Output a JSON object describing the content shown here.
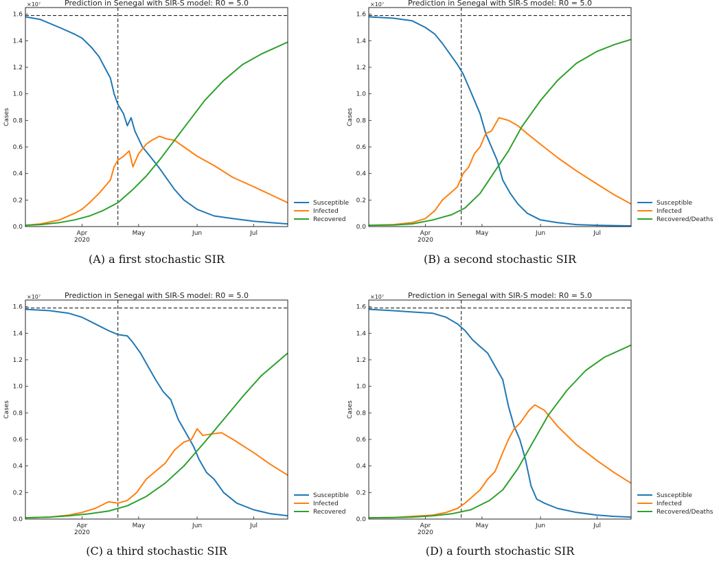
{
  "chart_data": [
    {
      "type": "line",
      "title": "Prediction in Senegal with SIR-S model: R0 = 5.0",
      "caption": "(A) a first stochastic SIR",
      "ylabel": "Cases",
      "y_multiplier": "×10⁷",
      "ylim": [
        0,
        1.65
      ],
      "y_ticks": [
        "0.0",
        "0.2",
        "0.4",
        "0.6",
        "0.8",
        "1.0",
        "1.2",
        "1.4",
        "1.6"
      ],
      "xlim": [
        "2020-03-02",
        "2020-07-19"
      ],
      "x_ticks": [
        {
          "date": "2020-04-01",
          "label": "Apr",
          "sublabel": "2020"
        },
        {
          "date": "2020-05-01",
          "label": "May",
          "sublabel": ""
        },
        {
          "date": "2020-06-01",
          "label": "Jun",
          "sublabel": ""
        },
        {
          "date": "2020-07-01",
          "label": "Jul",
          "sublabel": ""
        }
      ],
      "hline": 1.59,
      "vline": "2020-04-20",
      "legend_placement": "right-bottom",
      "series": [
        {
          "name": "Susceptible",
          "color": "#1f77b4",
          "x": [
            "2020-03-02",
            "2020-03-10",
            "2020-03-20",
            "2020-03-28",
            "2020-04-01",
            "2020-04-06",
            "2020-04-10",
            "2020-04-13",
            "2020-04-16",
            "2020-04-18",
            "2020-04-20",
            "2020-04-23",
            "2020-04-25",
            "2020-04-27",
            "2020-04-29",
            "2020-05-03",
            "2020-05-07",
            "2020-05-12",
            "2020-05-16",
            "2020-05-20",
            "2020-05-25",
            "2020-06-01",
            "2020-06-10",
            "2020-06-20",
            "2020-07-01",
            "2020-07-10",
            "2020-07-19"
          ],
          "y": [
            1.58,
            1.56,
            1.5,
            1.45,
            1.42,
            1.35,
            1.28,
            1.2,
            1.12,
            1.0,
            0.92,
            0.85,
            0.76,
            0.82,
            0.72,
            0.6,
            0.53,
            0.44,
            0.36,
            0.28,
            0.2,
            0.13,
            0.08,
            0.06,
            0.04,
            0.03,
            0.02
          ]
        },
        {
          "name": "Infected",
          "color": "#ff7f0e",
          "x": [
            "2020-03-02",
            "2020-03-10",
            "2020-03-20",
            "2020-03-28",
            "2020-04-01",
            "2020-04-05",
            "2020-04-10",
            "2020-04-13",
            "2020-04-16",
            "2020-04-18",
            "2020-04-20",
            "2020-04-23",
            "2020-04-26",
            "2020-04-28",
            "2020-05-01",
            "2020-05-05",
            "2020-05-08",
            "2020-05-12",
            "2020-05-16",
            "2020-05-20",
            "2020-05-25",
            "2020-06-01",
            "2020-06-10",
            "2020-06-20",
            "2020-07-01",
            "2020-07-10",
            "2020-07-19"
          ],
          "y": [
            0.01,
            0.02,
            0.05,
            0.1,
            0.13,
            0.18,
            0.25,
            0.3,
            0.35,
            0.45,
            0.5,
            0.53,
            0.57,
            0.45,
            0.55,
            0.62,
            0.65,
            0.68,
            0.66,
            0.65,
            0.6,
            0.53,
            0.46,
            0.37,
            0.3,
            0.24,
            0.18
          ]
        },
        {
          "name": "Recovered",
          "color": "#2ca02c",
          "x": [
            "2020-03-02",
            "2020-03-10",
            "2020-03-20",
            "2020-03-28",
            "2020-04-05",
            "2020-04-12",
            "2020-04-20",
            "2020-04-28",
            "2020-05-05",
            "2020-05-12",
            "2020-05-20",
            "2020-05-28",
            "2020-06-05",
            "2020-06-15",
            "2020-06-25",
            "2020-07-05",
            "2020-07-19"
          ],
          "y": [
            0.01,
            0.015,
            0.03,
            0.05,
            0.08,
            0.12,
            0.18,
            0.28,
            0.38,
            0.5,
            0.65,
            0.8,
            0.95,
            1.1,
            1.22,
            1.3,
            1.39
          ]
        }
      ]
    },
    {
      "type": "line",
      "title": "Prediction in Senegal with SIR-S model: R0 = 5.0",
      "caption": "(B) a second stochastic SIR",
      "ylabel": "Cases",
      "y_multiplier": "×10⁷",
      "ylim": [
        0,
        1.65
      ],
      "y_ticks": [
        "0.0",
        "0.2",
        "0.4",
        "0.6",
        "0.8",
        "1.0",
        "1.2",
        "1.4",
        "1.6"
      ],
      "xlim": [
        "2020-03-02",
        "2020-07-19"
      ],
      "x_ticks": [
        {
          "date": "2020-04-01",
          "label": "Apr",
          "sublabel": "2020"
        },
        {
          "date": "2020-05-01",
          "label": "May",
          "sublabel": ""
        },
        {
          "date": "2020-06-01",
          "label": "Jun",
          "sublabel": ""
        },
        {
          "date": "2020-07-01",
          "label": "Jul",
          "sublabel": ""
        }
      ],
      "hline": 1.59,
      "vline": "2020-04-20",
      "legend_placement": "right-bottom",
      "series": [
        {
          "name": "Susceptible",
          "color": "#1f77b4",
          "x": [
            "2020-03-02",
            "2020-03-15",
            "2020-03-25",
            "2020-04-01",
            "2020-04-06",
            "2020-04-10",
            "2020-04-14",
            "2020-04-18",
            "2020-04-21",
            "2020-04-24",
            "2020-04-27",
            "2020-04-30",
            "2020-05-03",
            "2020-05-06",
            "2020-05-09",
            "2020-05-12",
            "2020-05-16",
            "2020-05-20",
            "2020-05-25",
            "2020-06-01",
            "2020-06-10",
            "2020-06-20",
            "2020-07-01",
            "2020-07-19"
          ],
          "y": [
            1.58,
            1.57,
            1.55,
            1.5,
            1.45,
            1.38,
            1.3,
            1.22,
            1.15,
            1.05,
            0.95,
            0.85,
            0.7,
            0.6,
            0.5,
            0.35,
            0.25,
            0.17,
            0.1,
            0.05,
            0.03,
            0.015,
            0.01,
            0.005
          ]
        },
        {
          "name": "Infected",
          "color": "#ff7f0e",
          "x": [
            "2020-03-02",
            "2020-03-15",
            "2020-03-25",
            "2020-04-01",
            "2020-04-06",
            "2020-04-10",
            "2020-04-14",
            "2020-04-18",
            "2020-04-21",
            "2020-04-24",
            "2020-04-27",
            "2020-04-30",
            "2020-05-03",
            "2020-05-06",
            "2020-05-10",
            "2020-05-15",
            "2020-05-20",
            "2020-05-25",
            "2020-06-01",
            "2020-06-10",
            "2020-06-20",
            "2020-07-01",
            "2020-07-10",
            "2020-07-19"
          ],
          "y": [
            0.01,
            0.015,
            0.03,
            0.06,
            0.12,
            0.2,
            0.25,
            0.3,
            0.4,
            0.45,
            0.55,
            0.6,
            0.7,
            0.72,
            0.82,
            0.8,
            0.76,
            0.7,
            0.62,
            0.52,
            0.42,
            0.32,
            0.24,
            0.17
          ]
        },
        {
          "name": "Recovered/Deaths",
          "color": "#2ca02c",
          "x": [
            "2020-03-02",
            "2020-03-15",
            "2020-03-25",
            "2020-04-05",
            "2020-04-15",
            "2020-04-22",
            "2020-04-30",
            "2020-05-07",
            "2020-05-15",
            "2020-05-22",
            "2020-06-01",
            "2020-06-10",
            "2020-06-20",
            "2020-07-01",
            "2020-07-10",
            "2020-07-19"
          ],
          "y": [
            0.01,
            0.012,
            0.02,
            0.05,
            0.09,
            0.14,
            0.25,
            0.4,
            0.57,
            0.75,
            0.95,
            1.1,
            1.23,
            1.32,
            1.37,
            1.41
          ]
        }
      ]
    },
    {
      "type": "line",
      "title": "Prediction in Senegal with SIR-S model: R0 = 5.0",
      "caption": "(C) a third stochastic SIR",
      "ylabel": "Cases",
      "y_multiplier": "×10⁷",
      "ylim": [
        0,
        1.65
      ],
      "y_ticks": [
        "0.0",
        "0.2",
        "0.4",
        "0.6",
        "0.8",
        "1.0",
        "1.2",
        "1.4",
        "1.6"
      ],
      "xlim": [
        "2020-03-02",
        "2020-07-19"
      ],
      "x_ticks": [
        {
          "date": "2020-04-01",
          "label": "Apr",
          "sublabel": "2020"
        },
        {
          "date": "2020-05-01",
          "label": "May",
          "sublabel": ""
        },
        {
          "date": "2020-06-01",
          "label": "Jun",
          "sublabel": ""
        },
        {
          "date": "2020-07-01",
          "label": "Jul",
          "sublabel": ""
        }
      ],
      "hline": 1.59,
      "vline": "2020-04-20",
      "legend_placement": "right-bottom",
      "series": [
        {
          "name": "Susceptible",
          "color": "#1f77b4",
          "x": [
            "2020-03-02",
            "2020-03-15",
            "2020-03-25",
            "2020-04-01",
            "2020-04-08",
            "2020-04-15",
            "2020-04-20",
            "2020-04-25",
            "2020-04-28",
            "2020-05-02",
            "2020-05-06",
            "2020-05-10",
            "2020-05-14",
            "2020-05-18",
            "2020-05-22",
            "2020-05-26",
            "2020-05-30",
            "2020-06-02",
            "2020-06-06",
            "2020-06-10",
            "2020-06-15",
            "2020-06-22",
            "2020-07-01",
            "2020-07-10",
            "2020-07-19"
          ],
          "y": [
            1.58,
            1.57,
            1.55,
            1.52,
            1.47,
            1.42,
            1.39,
            1.38,
            1.33,
            1.25,
            1.15,
            1.05,
            0.96,
            0.9,
            0.75,
            0.65,
            0.55,
            0.45,
            0.35,
            0.3,
            0.2,
            0.12,
            0.07,
            0.04,
            0.025
          ]
        },
        {
          "name": "Infected",
          "color": "#ff7f0e",
          "x": [
            "2020-03-02",
            "2020-03-15",
            "2020-03-25",
            "2020-04-01",
            "2020-04-08",
            "2020-04-15",
            "2020-04-20",
            "2020-04-25",
            "2020-04-30",
            "2020-05-05",
            "2020-05-10",
            "2020-05-15",
            "2020-05-20",
            "2020-05-25",
            "2020-05-29",
            "2020-06-01",
            "2020-06-04",
            "2020-06-08",
            "2020-06-14",
            "2020-06-20",
            "2020-07-01",
            "2020-07-10",
            "2020-07-19"
          ],
          "y": [
            0.01,
            0.015,
            0.03,
            0.05,
            0.08,
            0.13,
            0.12,
            0.14,
            0.2,
            0.3,
            0.36,
            0.42,
            0.52,
            0.58,
            0.6,
            0.68,
            0.63,
            0.64,
            0.65,
            0.6,
            0.5,
            0.41,
            0.33
          ]
        },
        {
          "name": "Recovered",
          "color": "#2ca02c",
          "x": [
            "2020-03-02",
            "2020-03-15",
            "2020-03-25",
            "2020-04-05",
            "2020-04-15",
            "2020-04-25",
            "2020-05-05",
            "2020-05-15",
            "2020-05-25",
            "2020-06-05",
            "2020-06-15",
            "2020-06-25",
            "2020-07-05",
            "2020-07-19"
          ],
          "y": [
            0.01,
            0.015,
            0.025,
            0.04,
            0.06,
            0.1,
            0.17,
            0.27,
            0.4,
            0.58,
            0.75,
            0.92,
            1.08,
            1.25
          ]
        }
      ]
    },
    {
      "type": "line",
      "title": "Prediction in Senegal with SIR-S model: R0 = 5.0",
      "caption": "(D) a fourth stochastic SIR",
      "ylabel": "Cases",
      "y_multiplier": "×10⁷",
      "ylim": [
        0,
        1.65
      ],
      "y_ticks": [
        "0.0",
        "0.2",
        "0.4",
        "0.6",
        "0.8",
        "1.0",
        "1.2",
        "1.4",
        "1.6"
      ],
      "xlim": [
        "2020-03-02",
        "2020-07-19"
      ],
      "x_ticks": [
        {
          "date": "2020-04-01",
          "label": "Apr",
          "sublabel": "2020"
        },
        {
          "date": "2020-05-01",
          "label": "May",
          "sublabel": ""
        },
        {
          "date": "2020-06-01",
          "label": "Jun",
          "sublabel": ""
        },
        {
          "date": "2020-07-01",
          "label": "Jul",
          "sublabel": ""
        }
      ],
      "hline": 1.59,
      "vline": "2020-04-20",
      "legend_placement": "right-bottom",
      "series": [
        {
          "name": "Susceptible",
          "color": "#1f77b4",
          "x": [
            "2020-03-02",
            "2020-03-15",
            "2020-03-25",
            "2020-04-05",
            "2020-04-12",
            "2020-04-18",
            "2020-04-22",
            "2020-04-26",
            "2020-04-30",
            "2020-05-04",
            "2020-05-08",
            "2020-05-12",
            "2020-05-15",
            "2020-05-18",
            "2020-05-21",
            "2020-05-24",
            "2020-05-27",
            "2020-05-30",
            "2020-06-03",
            "2020-06-10",
            "2020-06-20",
            "2020-07-01",
            "2020-07-10",
            "2020-07-19"
          ],
          "y": [
            1.58,
            1.57,
            1.56,
            1.55,
            1.52,
            1.47,
            1.42,
            1.35,
            1.3,
            1.25,
            1.15,
            1.05,
            0.85,
            0.7,
            0.6,
            0.45,
            0.25,
            0.15,
            0.12,
            0.08,
            0.05,
            0.03,
            0.02,
            0.015
          ]
        },
        {
          "name": "Infected",
          "color": "#ff7f0e",
          "x": [
            "2020-03-02",
            "2020-03-15",
            "2020-03-25",
            "2020-04-05",
            "2020-04-12",
            "2020-04-18",
            "2020-04-22",
            "2020-04-26",
            "2020-04-30",
            "2020-05-04",
            "2020-05-08",
            "2020-05-12",
            "2020-05-15",
            "2020-05-18",
            "2020-05-21",
            "2020-05-24",
            "2020-05-26",
            "2020-05-29",
            "2020-06-03",
            "2020-06-10",
            "2020-06-20",
            "2020-07-01",
            "2020-07-10",
            "2020-07-19"
          ],
          "y": [
            0.01,
            0.012,
            0.02,
            0.03,
            0.05,
            0.08,
            0.12,
            0.17,
            0.22,
            0.3,
            0.36,
            0.5,
            0.6,
            0.68,
            0.72,
            0.78,
            0.82,
            0.86,
            0.82,
            0.7,
            0.56,
            0.44,
            0.35,
            0.27
          ]
        },
        {
          "name": "Recovered/Deaths",
          "color": "#2ca02c",
          "x": [
            "2020-03-02",
            "2020-03-15",
            "2020-03-25",
            "2020-04-05",
            "2020-04-15",
            "2020-04-25",
            "2020-05-05",
            "2020-05-12",
            "2020-05-20",
            "2020-05-28",
            "2020-06-05",
            "2020-06-15",
            "2020-06-25",
            "2020-07-05",
            "2020-07-19"
          ],
          "y": [
            0.01,
            0.012,
            0.015,
            0.025,
            0.04,
            0.07,
            0.14,
            0.22,
            0.38,
            0.58,
            0.78,
            0.97,
            1.12,
            1.22,
            1.31
          ]
        }
      ]
    }
  ]
}
